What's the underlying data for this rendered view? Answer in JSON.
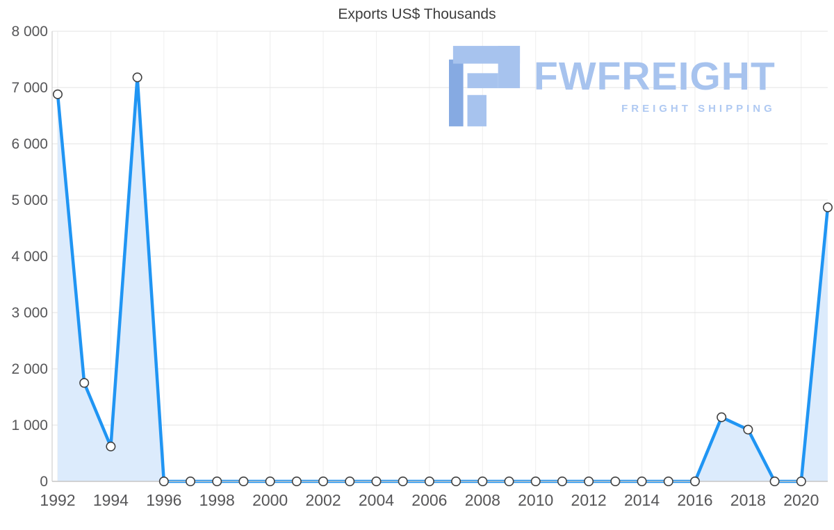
{
  "title": "Exports US$ Thousands",
  "watermark": {
    "brand": "FWFREIGHT",
    "tagline": "FREIGHT SHIPPING",
    "colors": {
      "logo_dark": "#86aae2",
      "logo_light": "#a7c3ee",
      "brand_text": "#a7c3ee",
      "tagline_text": "#afc9f2"
    }
  },
  "chart_data": {
    "type": "area",
    "title": "Exports US$ Thousands",
    "xlabel": "",
    "ylabel": "",
    "x": [
      1992,
      1993,
      1994,
      1995,
      1996,
      1997,
      1998,
      1999,
      2000,
      2001,
      2002,
      2003,
      2004,
      2005,
      2006,
      2007,
      2008,
      2009,
      2010,
      2011,
      2012,
      2013,
      2014,
      2015,
      2016,
      2017,
      2018,
      2019,
      2020,
      2021
    ],
    "values": [
      6880,
      1750,
      620,
      7180,
      0,
      0,
      0,
      0,
      0,
      0,
      0,
      0,
      0,
      0,
      0,
      0,
      0,
      0,
      0,
      0,
      0,
      0,
      0,
      0,
      0,
      1140,
      920,
      0,
      0,
      4870
    ],
    "ylim": [
      0,
      8000
    ],
    "y_ticks": [
      0,
      1000,
      2000,
      3000,
      4000,
      5000,
      6000,
      7000,
      8000
    ],
    "y_tick_labels": [
      "0",
      "1 000",
      "2 000",
      "3 000",
      "4 000",
      "5 000",
      "6 000",
      "7 000",
      "8 000"
    ],
    "x_tick_labels": [
      "1992",
      "1994",
      "1996",
      "1998",
      "2000",
      "2002",
      "2004",
      "2006",
      "2008",
      "2010",
      "2012",
      "2014",
      "2016",
      "2018",
      "2020"
    ],
    "grid": true,
    "legend": false,
    "colors": {
      "line": "#2095f3",
      "area": "#dcebfc",
      "marker_fill": "#ffffff",
      "marker_stroke": "#3f3f3f",
      "grid_h": "#e3e3e3",
      "grid_v": "#eeeeee",
      "axis": "#c6c6c6",
      "tick_text": "#565658"
    }
  }
}
